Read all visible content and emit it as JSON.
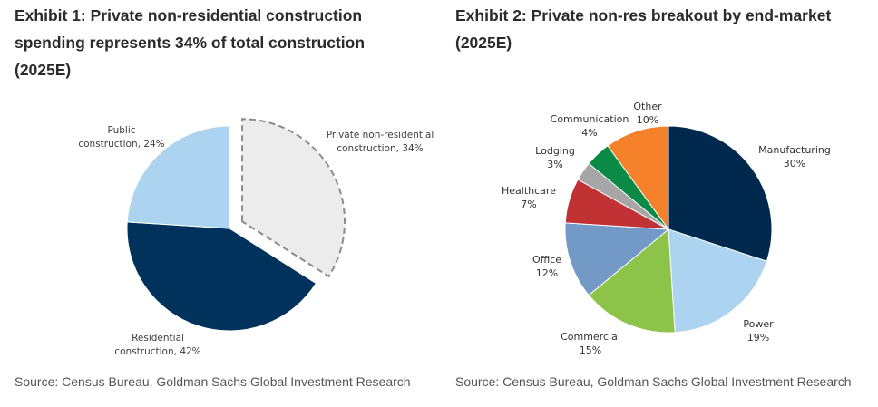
{
  "chart_data": [
    {
      "type": "pie",
      "title": "Exhibit 1: Private non-residential construction spending represents 34% of total construction (2025E)",
      "source": "Source: Census Bureau, Goldman Sachs Global Investment Research",
      "start": "12 o'clock, clockwise",
      "slices": [
        {
          "name": "Private non-residential construction",
          "value": 34,
          "label": "Private non-residential construction, 34%",
          "label_lines": [
            "Private non-residential",
            "construction, 34%"
          ],
          "color": "#ececec",
          "exploded": true,
          "dashed_outline": true
        },
        {
          "name": "Residential construction",
          "value": 42,
          "label": "Residential construction, 42%",
          "label_lines": [
            "Residential",
            "construction, 42%"
          ],
          "color": "#00325b"
        },
        {
          "name": "Public construction",
          "value": 24,
          "label": "Public construction, 24%",
          "label_lines": [
            "Public",
            "construction, 24%"
          ],
          "color": "#acd3f0"
        }
      ]
    },
    {
      "type": "pie",
      "title": "Exhibit 2: Private non-res breakout by end-market (2025E)",
      "source": "Source: Census Bureau, Goldman Sachs Global Investment Research",
      "start": "12 o'clock, clockwise",
      "slices": [
        {
          "name": "Manufacturing",
          "value": 30,
          "label_lines": [
            "Manufacturing",
            "30%"
          ],
          "color": "#00294d"
        },
        {
          "name": "Power",
          "value": 19,
          "label_lines": [
            "Power",
            "19%"
          ],
          "color": "#acd3f0"
        },
        {
          "name": "Commercial",
          "value": 15,
          "label_lines": [
            "Commercial",
            "15%"
          ],
          "color": "#8cc349"
        },
        {
          "name": "Office",
          "value": 12,
          "label_lines": [
            "Office",
            "12%"
          ],
          "color": "#7399c6"
        },
        {
          "name": "Healthcare",
          "value": 7,
          "label_lines": [
            "Healthcare",
            "7%"
          ],
          "color": "#c03234"
        },
        {
          "name": "Lodging",
          "value": 3,
          "label_lines": [
            "Lodging",
            "3%"
          ],
          "color": "#a6a6a6"
        },
        {
          "name": "Communication",
          "value": 4,
          "label_lines": [
            "Communication",
            "4%"
          ],
          "color": "#0a8a45"
        },
        {
          "name": "Other",
          "value": 10,
          "label_lines": [
            "Other",
            "10%"
          ],
          "color": "#f5822a"
        }
      ]
    }
  ],
  "exhibit1": {
    "title": "Exhibit 1: Private non-residential construction spending represents 34% of total construction (2025E)",
    "source": "Source: Census Bureau, Goldman Sachs Global Investment Research"
  },
  "exhibit2": {
    "title": "Exhibit 2: Private non-res breakout by end-market (2025E)",
    "source": "Source: Census Bureau, Goldman Sachs Global Investment Research"
  }
}
